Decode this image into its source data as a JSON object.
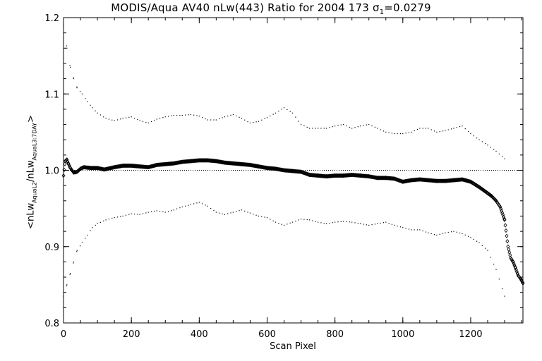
{
  "chart_data": {
    "type": "scatter",
    "title": {
      "prefix": "MODIS/Aqua AV40 nLw(443) Ratio for 2004 173 ",
      "sigma_symbol": "σ",
      "sigma_sub": "1",
      "suffix": "=0.0279"
    },
    "xlabel": "Scan Pixel",
    "ylabel": {
      "open": "<nLw",
      "sub1": "AquaL2",
      "middle": "/nLw",
      "sub2": "AquaL3:7DAY",
      "close": ">"
    },
    "xlim": [
      0,
      1354
    ],
    "ylim": [
      0.8,
      1.2
    ],
    "xticks": [
      0,
      200,
      400,
      600,
      800,
      1000,
      1200
    ],
    "yticks": [
      0.8,
      0.9,
      1.0,
      1.1,
      1.2
    ],
    "ytick_labels": [
      "0.8",
      "0.9",
      "1.0",
      "1.1",
      "1.2"
    ],
    "reference_line": 1.0,
    "series": [
      {
        "style": "diamond",
        "x": [
          0,
          5,
          10,
          15,
          20,
          25,
          30,
          40,
          50,
          60,
          80,
          100,
          120,
          150,
          175,
          200,
          225,
          250,
          275,
          300,
          325,
          350,
          375,
          400,
          425,
          450,
          475,
          500,
          525,
          550,
          575,
          600,
          625,
          650,
          675,
          700,
          725,
          750,
          775,
          800,
          825,
          850,
          875,
          900,
          925,
          950,
          975,
          1000,
          1025,
          1050,
          1075,
          1100,
          1125,
          1150,
          1175,
          1200,
          1225,
          1250,
          1262,
          1275,
          1287,
          1300,
          1310,
          1318,
          1325,
          1332,
          1340,
          1347,
          1354
        ],
        "y": [
          0.993,
          1.012,
          1.014,
          1.008,
          1.003,
          1.0,
          0.997,
          0.998,
          1.002,
          1.004,
          1.003,
          1.003,
          1.001,
          1.004,
          1.006,
          1.006,
          1.005,
          1.004,
          1.007,
          1.008,
          1.009,
          1.011,
          1.012,
          1.013,
          1.013,
          1.012,
          1.01,
          1.009,
          1.008,
          1.007,
          1.005,
          1.003,
          1.002,
          1.0,
          0.999,
          0.998,
          0.994,
          0.993,
          0.992,
          0.993,
          0.993,
          0.994,
          0.993,
          0.992,
          0.99,
          0.99,
          0.989,
          0.985,
          0.987,
          0.988,
          0.987,
          0.986,
          0.986,
          0.987,
          0.988,
          0.985,
          0.978,
          0.97,
          0.966,
          0.96,
          0.952,
          0.935,
          0.9,
          0.885,
          0.88,
          0.872,
          0.862,
          0.858,
          0.852
        ]
      },
      {
        "style": "dot",
        "name_hint": "upper",
        "x": [
          0,
          10,
          20,
          30,
          40,
          55,
          70,
          85,
          100,
          125,
          150,
          175,
          200,
          225,
          250,
          275,
          300,
          325,
          350,
          375,
          400,
          425,
          450,
          475,
          500,
          525,
          550,
          575,
          600,
          625,
          650,
          675,
          700,
          725,
          750,
          775,
          800,
          825,
          850,
          875,
          900,
          925,
          950,
          975,
          1000,
          1025,
          1050,
          1075,
          1100,
          1125,
          1150,
          1175,
          1200,
          1225,
          1250,
          1275,
          1300
        ],
        "y": [
          1.19,
          1.16,
          1.135,
          1.12,
          1.108,
          1.1,
          1.09,
          1.082,
          1.075,
          1.068,
          1.065,
          1.068,
          1.07,
          1.065,
          1.062,
          1.067,
          1.07,
          1.072,
          1.072,
          1.073,
          1.071,
          1.066,
          1.066,
          1.07,
          1.073,
          1.068,
          1.062,
          1.064,
          1.069,
          1.075,
          1.082,
          1.075,
          1.06,
          1.055,
          1.055,
          1.055,
          1.058,
          1.06,
          1.055,
          1.058,
          1.06,
          1.055,
          1.05,
          1.048,
          1.048,
          1.05,
          1.055,
          1.055,
          1.05,
          1.052,
          1.055,
          1.058,
          1.048,
          1.04,
          1.033,
          1.025,
          1.015
        ]
      },
      {
        "style": "dot",
        "name_hint": "lower",
        "x": [
          0,
          10,
          20,
          30,
          40,
          55,
          70,
          85,
          100,
          125,
          150,
          175,
          200,
          225,
          250,
          275,
          300,
          325,
          350,
          375,
          400,
          425,
          450,
          475,
          500,
          525,
          550,
          575,
          600,
          625,
          650,
          675,
          700,
          725,
          750,
          775,
          800,
          825,
          850,
          875,
          900,
          925,
          950,
          975,
          1000,
          1025,
          1050,
          1075,
          1100,
          1125,
          1150,
          1175,
          1200,
          1225,
          1250,
          1275,
          1300
        ],
        "y": [
          0.835,
          0.85,
          0.865,
          0.88,
          0.895,
          0.905,
          0.915,
          0.925,
          0.93,
          0.935,
          0.938,
          0.94,
          0.943,
          0.942,
          0.945,
          0.947,
          0.945,
          0.948,
          0.952,
          0.955,
          0.958,
          0.953,
          0.945,
          0.942,
          0.945,
          0.948,
          0.944,
          0.94,
          0.938,
          0.932,
          0.928,
          0.932,
          0.936,
          0.935,
          0.932,
          0.93,
          0.932,
          0.933,
          0.932,
          0.93,
          0.928,
          0.93,
          0.932,
          0.928,
          0.925,
          0.922,
          0.922,
          0.918,
          0.915,
          0.918,
          0.92,
          0.917,
          0.912,
          0.905,
          0.895,
          0.87,
          0.835
        ]
      }
    ]
  }
}
